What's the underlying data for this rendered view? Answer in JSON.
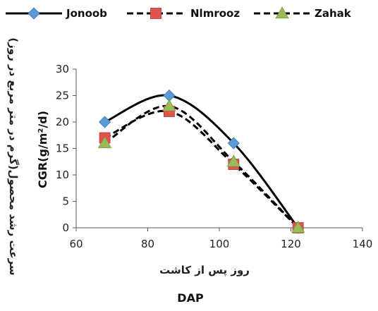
{
  "chart_data": {
    "type": "line",
    "x": [
      68,
      86,
      104,
      122
    ],
    "series": [
      {
        "name": "Jonoob",
        "values": [
          20,
          25,
          16,
          0
        ],
        "color": "#5B9BD5",
        "marker": "diamond",
        "line": "solid"
      },
      {
        "name": "Nlmrooz",
        "values": [
          17,
          22,
          12,
          0
        ],
        "color": "#E0534E",
        "marker": "square",
        "line": "dashed"
      },
      {
        "name": "Zahak",
        "values": [
          16,
          23,
          12.5,
          0
        ],
        "color": "#9BBB59",
        "marker": "triangle",
        "line": "dashed"
      }
    ],
    "xlabel_fa": "روز پس از کاشت",
    "xlabel": "DAP",
    "ylabel_fa": "سرعت رشد محصول(گرم در متر مربع در روز)",
    "ylabel": "CGR(g/m²/d)",
    "xlim": [
      60,
      140
    ],
    "ylim": [
      0,
      30
    ],
    "xticks": [
      60,
      80,
      100,
      120,
      140
    ],
    "yticks": [
      0,
      5,
      10,
      15,
      20,
      25,
      30
    ],
    "xtick_labels": [
      "60",
      "80",
      "100",
      "120",
      "140"
    ],
    "ytick_labels": [
      "0",
      "5",
      "10",
      "15",
      "20",
      "25",
      "30"
    ],
    "grid": false,
    "legend_position": "top"
  }
}
